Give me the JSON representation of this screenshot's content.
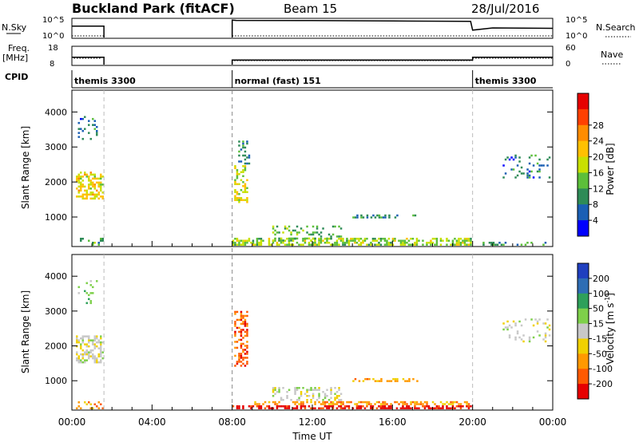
{
  "header": {
    "station": "Buckland Park (fitACF)",
    "beam": "Beam 15",
    "date": "28/Jul/2016"
  },
  "params": {
    "nsky_label": "N.Sky",
    "nsky_ticks": [
      "10^5",
      "10^0"
    ],
    "nsearch_label": "N.Search",
    "nsearch_ticks": [
      "10^5",
      "10^0"
    ],
    "freq_label": "Freq.",
    "freq_unit": "[MHz]",
    "freq_ticks": [
      "18",
      "8"
    ],
    "nave_label": "Nave",
    "nave_ticks": [
      "60",
      "0"
    ],
    "cpid_label": "CPID",
    "cpid_segments": [
      {
        "label": "themis 3300",
        "start_hour": 0,
        "end_hour": 1.6
      },
      {
        "label": "normal (fast) 151",
        "start_hour": 8,
        "end_hour": 20
      },
      {
        "label": "themis 3300",
        "start_hour": 20,
        "end_hour": 24
      }
    ]
  },
  "power_panel": {
    "ylabel": "Slant Range [km]",
    "yticks": [
      "1000",
      "2000",
      "3000",
      "4000"
    ],
    "colorbar_label": "Power [dB]",
    "colorbar_ticks": [
      "4",
      "8",
      "12",
      "16",
      "20",
      "24",
      "28"
    ],
    "colors": [
      "#0000ff",
      "#1a5fb4",
      "#2e8b57",
      "#5cbf3a",
      "#c8e000",
      "#ffc000",
      "#ff8c00",
      "#ff4000",
      "#e60000"
    ]
  },
  "velocity_panel": {
    "ylabel": "Slant Range [km]",
    "yticks": [
      "1000",
      "2000",
      "3000",
      "4000"
    ],
    "colorbar_label": "Velocity [m s",
    "colorbar_sup": "-1",
    "colorbar_ticks": [
      "200",
      "100",
      "50",
      "15",
      "-15",
      "-50",
      "-100",
      "-200"
    ],
    "colors": [
      "#1f3fbf",
      "#2e6db4",
      "#2ea05a",
      "#7ed04a",
      "#c8c8c8",
      "#f0d000",
      "#ff9900",
      "#ff5a00",
      "#e60000"
    ]
  },
  "xaxis": {
    "label": "Time UT",
    "ticks": [
      "00:00",
      "04:00",
      "08:00",
      "12:00",
      "16:00",
      "20:00",
      "00:00"
    ]
  },
  "chart_data": [
    {
      "type": "line",
      "title": "N.Sky / N.Search",
      "x": [
        0,
        1.6,
        8,
        8.2,
        12,
        16,
        19.9,
        20,
        21,
        24
      ],
      "series": [
        {
          "name": "N.Sky",
          "values": [
            0.62,
            0.62,
            0.95,
            0.93,
            0.92,
            0.9,
            0.88,
            0.4,
            0.52,
            0.5
          ]
        }
      ]
    },
    {
      "type": "line",
      "title": "Freq. / Nave",
      "x": [
        0,
        1.6,
        8,
        20,
        24
      ],
      "series": [
        {
          "name": "Freq.",
          "values": [
            12,
            12,
            10.5,
            12,
            12
          ]
        }
      ]
    },
    {
      "type": "heatmap",
      "title": "Power [dB]",
      "xlabel": "Time UT",
      "ylabel": "Slant Range [km]",
      "xlim": [
        0,
        24
      ],
      "ylim": [
        180,
        4600
      ],
      "clim": [
        0,
        32
      ],
      "cells": [
        {
          "t0": 0.2,
          "t1": 1.6,
          "r0": 1500,
          "r1": 2300,
          "v": 18,
          "d": 0.55
        },
        {
          "t0": 0.2,
          "t1": 1.6,
          "r0": 180,
          "r1": 400,
          "v": 10,
          "d": 0.3
        },
        {
          "t0": 0.3,
          "t1": 1.3,
          "r0": 3200,
          "r1": 3900,
          "v": 6,
          "d": 0.15
        },
        {
          "t0": 8.1,
          "t1": 8.8,
          "r0": 1400,
          "r1": 2500,
          "v": 16,
          "d": 0.45
        },
        {
          "t0": 8.3,
          "t1": 8.9,
          "r0": 2500,
          "r1": 3200,
          "v": 8,
          "d": 0.2
        },
        {
          "t0": 8.0,
          "t1": 20.0,
          "r0": 180,
          "r1": 380,
          "v": 14,
          "d": 0.55
        },
        {
          "t0": 10.0,
          "t1": 13.5,
          "r0": 300,
          "r1": 750,
          "v": 11,
          "d": 0.25
        },
        {
          "t0": 13.8,
          "t1": 17.4,
          "r0": 960,
          "r1": 1080,
          "v": 7,
          "d": 0.35
        },
        {
          "t0": 20.5,
          "t1": 23.8,
          "r0": 180,
          "r1": 300,
          "v": 9,
          "d": 0.25
        },
        {
          "t0": 21.5,
          "t1": 23.9,
          "r0": 2100,
          "r1": 2800,
          "v": 6,
          "d": 0.15
        }
      ]
    },
    {
      "type": "heatmap",
      "title": "Velocity [m s-1]",
      "xlabel": "Time UT",
      "ylabel": "Slant Range [km]",
      "xlim": [
        0,
        24
      ],
      "ylim": [
        180,
        4600
      ],
      "clim": [
        -250,
        250
      ],
      "cells": [
        {
          "t0": 0.2,
          "t1": 1.6,
          "r0": 1500,
          "r1": 2300,
          "v": 0,
          "d": 0.55
        },
        {
          "t0": 0.2,
          "t1": 1.6,
          "r0": 180,
          "r1": 400,
          "v": -40,
          "d": 0.3
        },
        {
          "t0": 0.3,
          "t1": 1.3,
          "r0": 3200,
          "r1": 3900,
          "v": 20,
          "d": 0.12
        },
        {
          "t0": 8.1,
          "t1": 8.8,
          "r0": 1400,
          "r1": 3000,
          "v": -80,
          "d": 0.4
        },
        {
          "t0": 8.0,
          "t1": 20.0,
          "r0": 180,
          "r1": 300,
          "v": -220,
          "d": 0.6
        },
        {
          "t0": 9.0,
          "t1": 20.0,
          "r0": 300,
          "r1": 420,
          "v": -30,
          "d": 0.45
        },
        {
          "t0": 10.0,
          "t1": 13.5,
          "r0": 420,
          "r1": 800,
          "v": 0,
          "d": 0.3
        },
        {
          "t0": 13.8,
          "t1": 17.4,
          "r0": 960,
          "r1": 1080,
          "v": -40,
          "d": 0.35
        },
        {
          "t0": 21.5,
          "t1": 23.9,
          "r0": 2100,
          "r1": 2800,
          "v": 10,
          "d": 0.15
        }
      ]
    }
  ]
}
